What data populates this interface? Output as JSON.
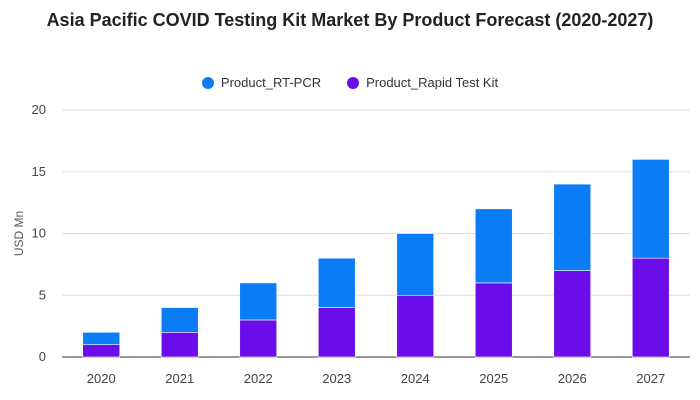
{
  "chart_data": {
    "type": "bar",
    "stacked": true,
    "title": "Asia Pacific COVID Testing Kit Market By Product Forecast (2020-2027)",
    "xlabel": "",
    "ylabel": "USD Mn",
    "categories": [
      "2020",
      "2021",
      "2022",
      "2023",
      "2024",
      "2025",
      "2026",
      "2027"
    ],
    "series": [
      {
        "name": "Product_Rapid Test Kit",
        "color": "#6a0de8",
        "values": [
          1,
          2,
          3,
          4,
          5,
          6,
          7,
          8
        ]
      },
      {
        "name": "Product_RT-PCR",
        "color": "#0a7cf5",
        "values": [
          1,
          2,
          3,
          4,
          5,
          6,
          7,
          8
        ]
      }
    ],
    "legend_order": [
      1,
      0
    ],
    "ylim": [
      0,
      20
    ],
    "yticks": [
      "0",
      "5",
      "10",
      "15",
      "20"
    ],
    "grid": true,
    "legend_position": "top"
  }
}
